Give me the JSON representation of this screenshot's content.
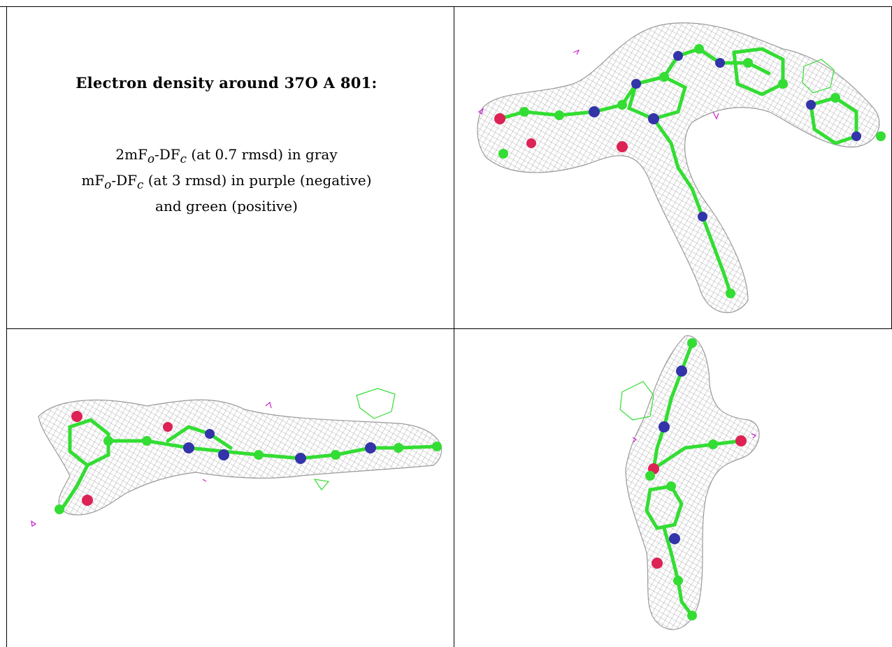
{
  "title": "Electron density around 37O A 801:",
  "legend": {
    "line1": {
      "pre": "2mF",
      "sub1": "o",
      "mid": "-DF",
      "sub2": "c",
      "post": " (at 0.7 rmsd) in gray"
    },
    "line2": {
      "pre": "mF",
      "sub1": "o",
      "mid": "-DF",
      "sub2": "c",
      "post": " (at 3 rmsd) in purple (negative)"
    },
    "line3": "and green (positive)"
  },
  "colors": {
    "mesh": "#9a9a9a",
    "carbon": "#33dd33",
    "nitrogen": "#3333aa",
    "oxygen": "#dd2255",
    "negative": "#cc22cc",
    "positive": "#33dd33"
  }
}
